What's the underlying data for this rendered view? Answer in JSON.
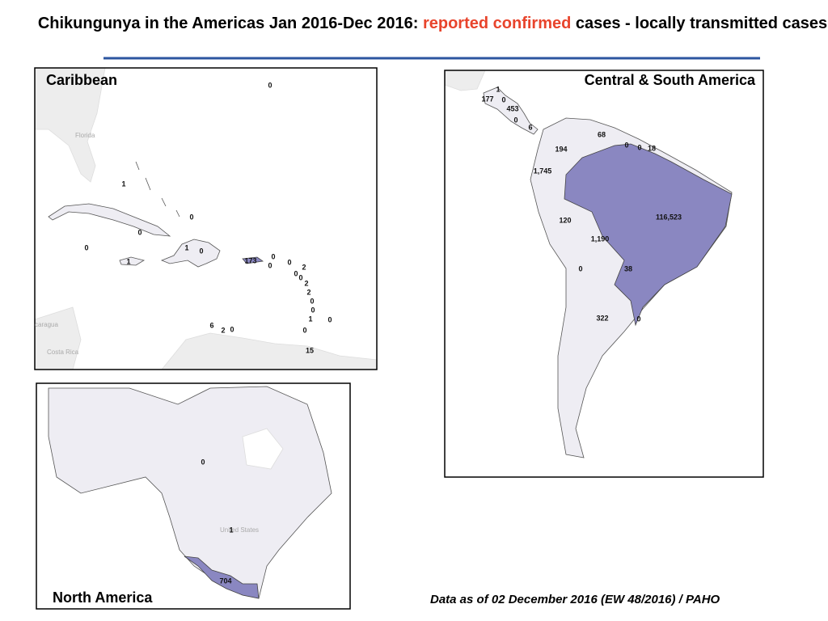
{
  "title": {
    "prefix": "Chikungunya in the Americas Jan 2016-Dec 2016:",
    "highlight": "reported confirmed",
    "suffix": "cases - locally transmitted cases"
  },
  "panels": [
    {
      "title": "Caribbean",
      "place_names": [
        "Florida",
        "caragua",
        "Costa Rica"
      ],
      "labels": [
        "0",
        "1",
        "0",
        "0",
        "0",
        "1",
        "0",
        "1",
        "173",
        "0",
        "0",
        "0",
        "2",
        "0",
        "0",
        "2",
        "2",
        "0",
        "0",
        "1",
        "0",
        "0",
        "6",
        "2",
        "0",
        "15"
      ]
    },
    {
      "title": "Central & South America",
      "labels": [
        "1",
        "177",
        "0",
        "453",
        "0",
        "6",
        "68",
        "194",
        "0",
        "0",
        "18",
        "1,745",
        "116,523",
        "120",
        "1,190",
        "0",
        "38",
        "322",
        "0"
      ]
    },
    {
      "title": "North America",
      "place_names": [
        "United States"
      ],
      "labels": [
        "0",
        "1",
        "704"
      ]
    }
  ],
  "footnote": "Data as of 02 December  2016 (EW 48/2016) / PAHO"
}
